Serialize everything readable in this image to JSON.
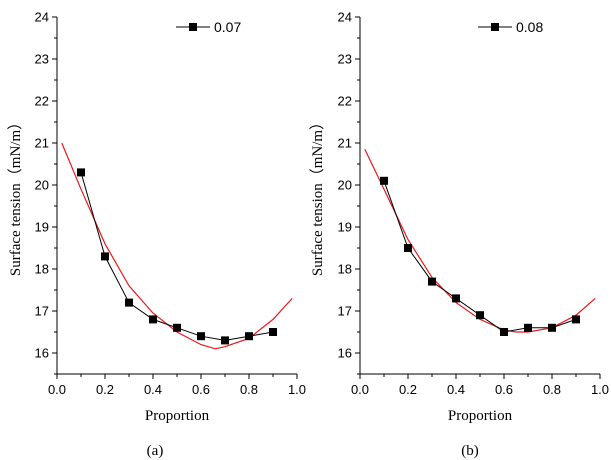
{
  "chart_data": [
    {
      "type": "line",
      "panel_label": "(a)",
      "xlabel": "Proportion",
      "ylabel": "Surface tension（mN/m）",
      "xlim": [
        0.0,
        1.0
      ],
      "ylim": [
        15.5,
        24
      ],
      "xticks": [
        "0.0",
        "0.2",
        "0.4",
        "0.6",
        "0.8",
        "1.0"
      ],
      "yticks": [
        "16",
        "17",
        "18",
        "19",
        "20",
        "21",
        "22",
        "23",
        "24"
      ],
      "legend_position": "top-right",
      "series": [
        {
          "name": "0.07",
          "style": "line-square-markers",
          "color": "#000000",
          "x": [
            0.1,
            0.2,
            0.3,
            0.4,
            0.5,
            0.6,
            0.7,
            0.8,
            0.9
          ],
          "y": [
            20.3,
            18.3,
            17.2,
            16.8,
            16.6,
            16.4,
            16.3,
            16.4,
            16.5
          ]
        },
        {
          "style": "fit-line",
          "color": "#e8181e",
          "x": [
            0.02,
            0.1,
            0.2,
            0.3,
            0.4,
            0.5,
            0.6,
            0.66,
            0.7,
            0.8,
            0.9,
            0.98
          ],
          "y": [
            21.0,
            19.9,
            18.6,
            17.6,
            16.95,
            16.5,
            16.2,
            16.1,
            16.15,
            16.35,
            16.8,
            17.3
          ]
        }
      ]
    },
    {
      "type": "line",
      "panel_label": "(b)",
      "xlabel": "Proportion",
      "ylabel": "Surface tension（mN/m）",
      "xlim": [
        0.0,
        1.0
      ],
      "ylim": [
        15.5,
        24
      ],
      "xticks": [
        "0.0",
        "0.2",
        "0.4",
        "0.6",
        "0.8",
        "1.0"
      ],
      "yticks": [
        "16",
        "17",
        "18",
        "19",
        "20",
        "21",
        "22",
        "23",
        "24"
      ],
      "legend_position": "top-right",
      "series": [
        {
          "name": "0.08",
          "style": "line-square-markers",
          "color": "#000000",
          "x": [
            0.1,
            0.2,
            0.3,
            0.4,
            0.5,
            0.6,
            0.7,
            0.8,
            0.9
          ],
          "y": [
            20.1,
            18.5,
            17.7,
            17.3,
            16.9,
            16.5,
            16.6,
            16.6,
            16.8
          ]
        },
        {
          "style": "fit-line",
          "color": "#e8181e",
          "x": [
            0.02,
            0.1,
            0.2,
            0.3,
            0.4,
            0.5,
            0.6,
            0.65,
            0.7,
            0.8,
            0.9,
            0.98
          ],
          "y": [
            20.85,
            19.9,
            18.7,
            17.8,
            17.2,
            16.8,
            16.55,
            16.5,
            16.5,
            16.6,
            16.9,
            17.3
          ]
        }
      ]
    }
  ]
}
